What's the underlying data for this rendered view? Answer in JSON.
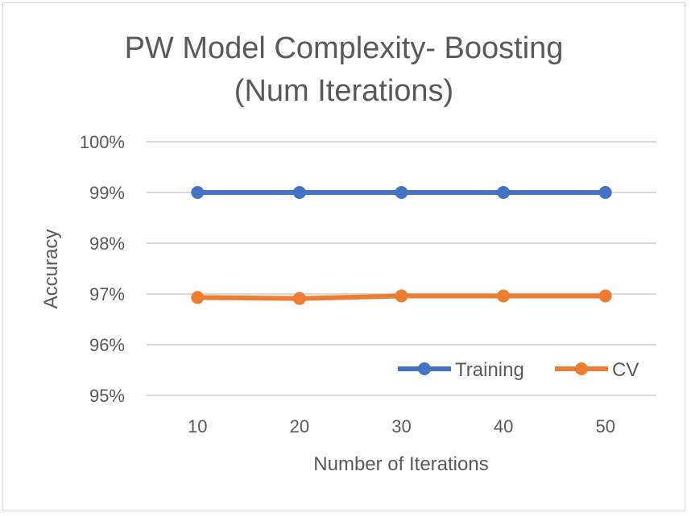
{
  "chart_data": {
    "type": "line",
    "title_lines": [
      "PW Model Complexity- Boosting",
      "(Num Iterations)"
    ],
    "xlabel": "Number of Iterations",
    "ylabel": "Accuracy",
    "categories": [
      "10",
      "20",
      "30",
      "40",
      "50"
    ],
    "ylim": [
      0.95,
      1.0
    ],
    "y_ticks": [
      0.95,
      0.96,
      0.97,
      0.98,
      0.99,
      1.0
    ],
    "y_tick_labels": [
      "95%",
      "96%",
      "97%",
      "98%",
      "99%",
      "100%"
    ],
    "grid": true,
    "legend_position": "bottom-right-inside",
    "series": [
      {
        "name": "Training",
        "color": "#4472c4",
        "values": [
          0.99,
          0.99,
          0.99,
          0.99,
          0.99
        ]
      },
      {
        "name": "CV",
        "color": "#ed7d31",
        "values": [
          0.9693,
          0.9691,
          0.9696,
          0.9696,
          0.9696
        ]
      }
    ]
  }
}
